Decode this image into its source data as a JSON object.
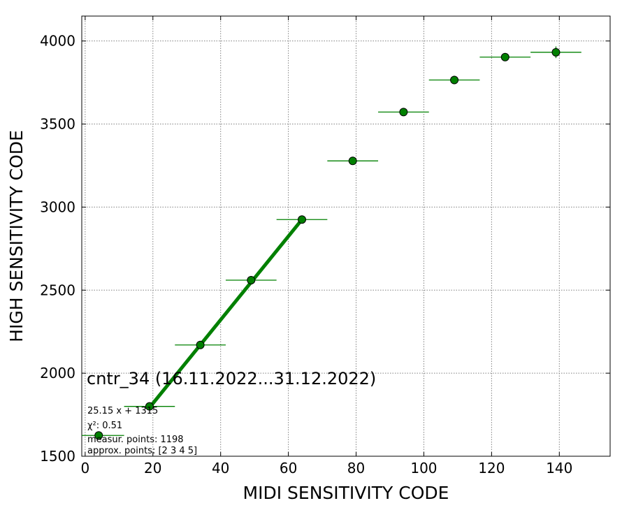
{
  "chart_data": {
    "type": "scatter",
    "title": "cntr_34 (16.11.2022...31.12.2022)",
    "xlabel": "MIDI SENSITIVITY CODE",
    "ylabel": "HIGH SENSITIVITY CODE",
    "xlim": [
      -1,
      155
    ],
    "ylim": [
      1500,
      4150
    ],
    "xticks": [
      0,
      20,
      40,
      60,
      80,
      100,
      120,
      140
    ],
    "yticks": [
      1500,
      2000,
      2500,
      3000,
      3500,
      4000
    ],
    "grid": true,
    "series": [
      {
        "color": "#008000",
        "points": [
          {
            "x": 4,
            "y": 1625,
            "xerr": 7.5,
            "yerr": 12
          },
          {
            "x": 19,
            "y": 1800,
            "xerr": 7.5,
            "yerr": 12
          },
          {
            "x": 34,
            "y": 2170,
            "xerr": 7.5,
            "yerr": 12
          },
          {
            "x": 49,
            "y": 2560,
            "xerr": 7.5,
            "yerr": 12
          },
          {
            "x": 64,
            "y": 2925,
            "xerr": 7.5,
            "yerr": 12
          },
          {
            "x": 79,
            "y": 3278,
            "xerr": 7.5,
            "yerr": 12
          },
          {
            "x": 94,
            "y": 3572,
            "xerr": 7.5,
            "yerr": 20
          },
          {
            "x": 109,
            "y": 3765,
            "xerr": 7.5,
            "yerr": 25
          },
          {
            "x": 124,
            "y": 3903,
            "xerr": 7.5,
            "yerr": 20
          },
          {
            "x": 139,
            "y": 3932,
            "xerr": 7.5,
            "yerr": 35
          }
        ]
      }
    ],
    "fit": {
      "color": "#008000",
      "slope": 25.15,
      "intercept": 1315,
      "x_range": [
        19,
        64
      ]
    },
    "annotations": {
      "fit_equation": "25.15 x + 1315",
      "chi2": "χ²: 0.51",
      "measur_points": "measur. points: 1198",
      "approx_points": "approx. points: [2 3 4 5]"
    }
  }
}
